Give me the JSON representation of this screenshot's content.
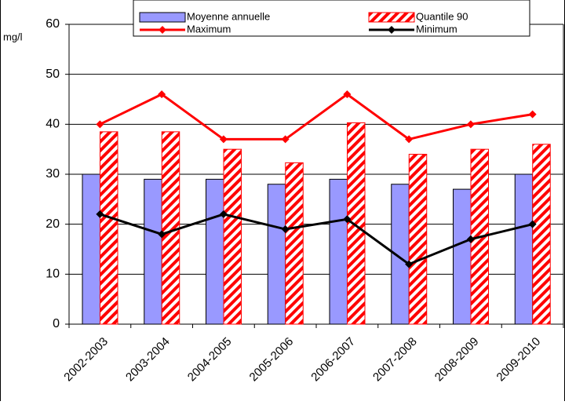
{
  "chart_data": {
    "type": "bar-line",
    "y_label": "mg/l",
    "categories": [
      "2002-2003",
      "2003-2004",
      "2004-2005",
      "2005-2006",
      "2006-2007",
      "2007-2008",
      "2008-2009",
      "2009-2010"
    ],
    "series": [
      {
        "name": "Moyenne annuelle",
        "color": "#9999ff",
        "mark": "bar",
        "values": [
          30,
          29,
          29,
          28,
          29,
          28,
          27,
          30
        ]
      },
      {
        "name": "Quantile 90",
        "color": "#ff0000",
        "mark": "hatched-bar",
        "values": [
          38.5,
          38.5,
          35,
          32.3,
          40.3,
          34,
          35,
          36
        ]
      },
      {
        "name": "Maximum",
        "color": "#ff0000",
        "mark": "line",
        "values": [
          40,
          46,
          37,
          37,
          46,
          37,
          40,
          42
        ]
      },
      {
        "name": "Minimum",
        "color": "#000000",
        "mark": "line",
        "values": [
          22,
          18,
          22,
          19,
          21,
          12,
          17,
          20
        ]
      }
    ],
    "ylim": [
      0,
      60
    ],
    "yticks": [
      0,
      10,
      20,
      30,
      40,
      50,
      60
    ],
    "grid": true
  }
}
